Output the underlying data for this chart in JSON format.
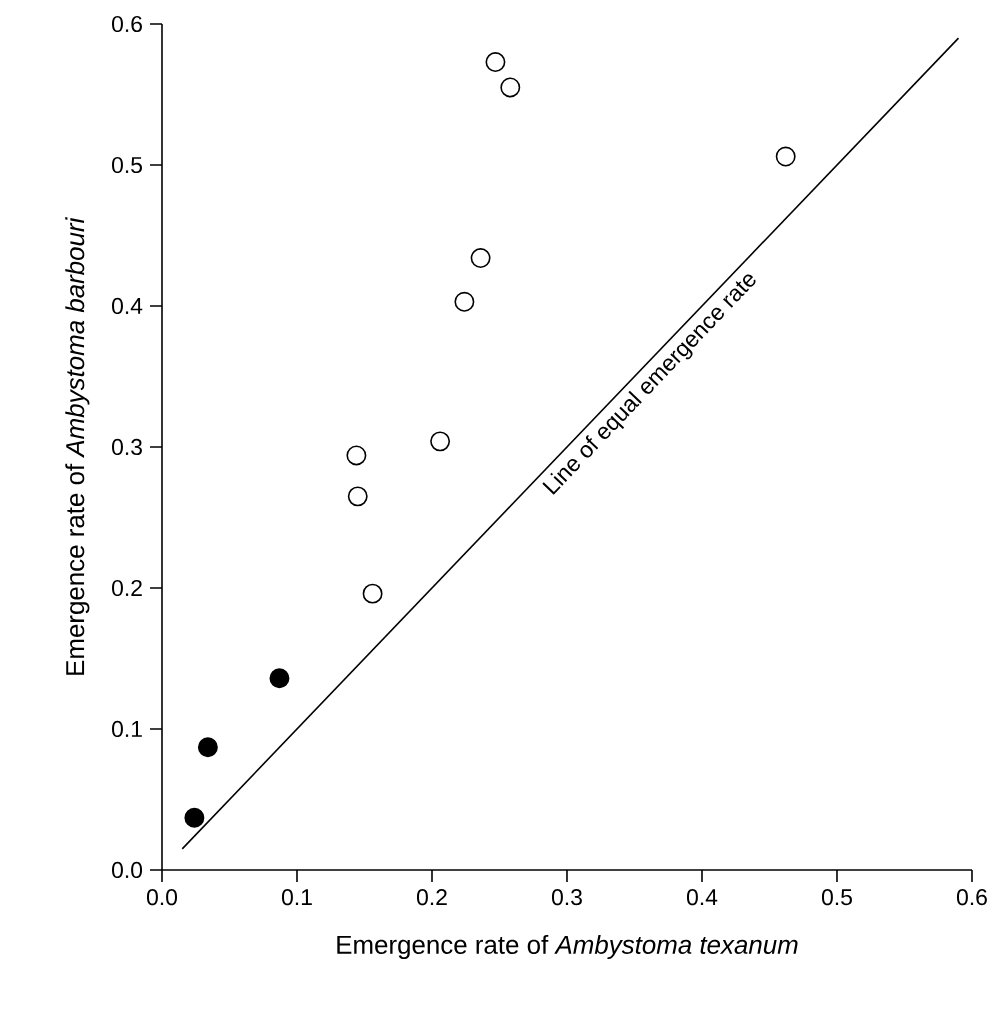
{
  "chart_data": {
    "type": "scatter",
    "xlabel": "Emergence rate of *Ambystoma texanum*",
    "ylabel": "Emergence rate of *Ambystoma barbouri*",
    "xlim": [
      0,
      0.6
    ],
    "ylim": [
      0,
      0.6
    ],
    "xticks": [
      {
        "value": 0,
        "label": "0.0"
      },
      0.1,
      0.2,
      0.3,
      0.4,
      0.5,
      0.6
    ],
    "yticks": [
      {
        "value": 0,
        "label": "0.0"
      },
      0.1,
      0.2,
      0.3,
      0.4,
      0.5,
      0.6
    ],
    "series": [
      {
        "color": "#000000",
        "marker": "circle",
        "x": [
          0.024,
          0.034,
          0.087
        ],
        "values": [
          0.037,
          0.087,
          0.136
        ]
      },
      {
        "color": "#ffffff",
        "marker": "circle",
        "x": [
          0.144,
          0.145,
          0.156,
          0.206,
          0.224,
          0.236,
          0.247,
          0.258,
          0.462
        ],
        "values": [
          0.294,
          0.265,
          0.196,
          0.304,
          0.403,
          0.434,
          0.573,
          0.555,
          0.506
        ]
      },
      {
        "type": "line",
        "color": "#000000",
        "marker": "none",
        "x": [
          0.015,
          0.59
        ],
        "values": [
          0.015,
          0.59
        ]
      }
    ],
    "annotations": [
      "Line of equal emergence rate"
    ]
  }
}
